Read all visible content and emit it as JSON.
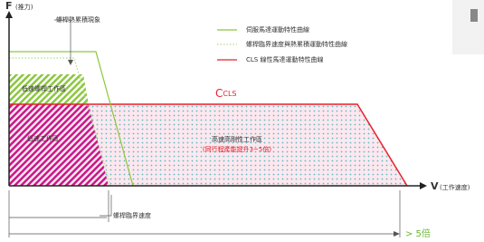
{
  "axes": {
    "y_label": "F",
    "y_unit": "(推力)",
    "x_label": "V",
    "x_unit": "(工作速度)"
  },
  "callouts": {
    "heat": "螺桿熱累積現象",
    "critical": "螺桿臨界速度",
    "ratio": "> 5倍"
  },
  "legend": [
    "伺服馬達運動特性曲線",
    "螺桿臨界速度與熱累積運動特性曲線",
    "CLS 線性馬達運動特性曲線"
  ],
  "regions": {
    "screw_low": "低速螺桿工作區",
    "low": "低速工作區",
    "high": "高速高剛性工作區",
    "high_note": "(同行程產能提升3~5倍)"
  },
  "curve_label": {
    "main": "C",
    "sub": "CLS"
  }
}
